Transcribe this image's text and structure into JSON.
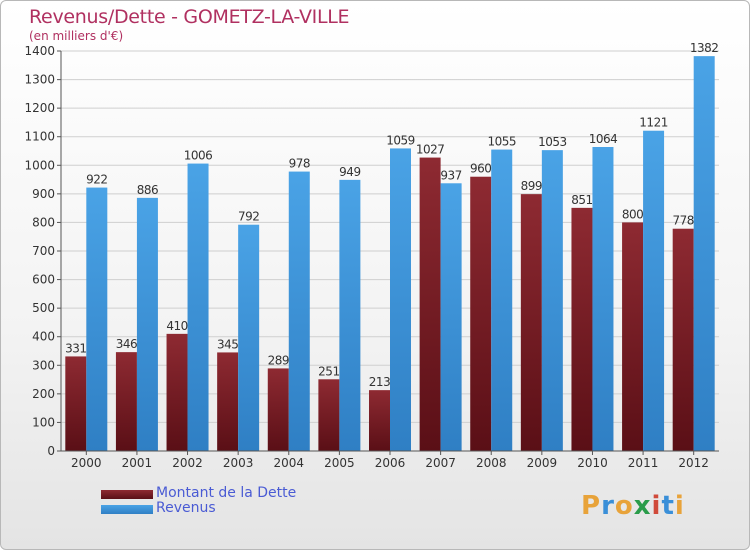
{
  "title": "Revenus/Dette - GOMETZ-LA-VILLE",
  "subtitle": "(en milliers d'€)",
  "logo": {
    "text": "Proxiti",
    "colors": [
      "#e8a33a",
      "#3a8fd8",
      "#e8a33a",
      "#2a9c4a",
      "#d04a3a",
      "#3a8fd8",
      "#e8a33a"
    ]
  },
  "legend": {
    "debt_label": "Montant de la Dette",
    "revenue_label": "Revenus"
  },
  "colors": {
    "debt": "#7a1e26",
    "revenue": "#3f96dc",
    "grid": "#cfcfcf",
    "axis": "#555555"
  },
  "chart_data": {
    "type": "bar",
    "categories": [
      "2000",
      "2001",
      "2002",
      "2003",
      "2004",
      "2005",
      "2006",
      "2007",
      "2008",
      "2009",
      "2010",
      "2011",
      "2012"
    ],
    "series": [
      {
        "name": "Montant de la Dette",
        "values": [
          331,
          346,
          410,
          345,
          289,
          251,
          213,
          1027,
          960,
          899,
          851,
          800,
          778
        ]
      },
      {
        "name": "Revenus",
        "values": [
          922,
          886,
          1006,
          792,
          978,
          949,
          1059,
          937,
          1055,
          1053,
          1064,
          1121,
          1382
        ]
      }
    ],
    "yticks": [
      0,
      100,
      200,
      300,
      400,
      500,
      600,
      700,
      800,
      900,
      1000,
      1100,
      1200,
      1300,
      1400
    ],
    "ylim": [
      0,
      1400
    ],
    "grid": true,
    "legend_position": "bottom-left"
  }
}
